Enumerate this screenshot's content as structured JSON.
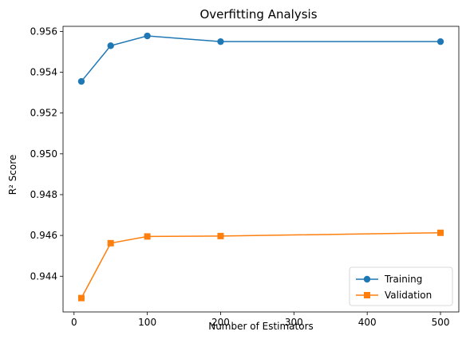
{
  "chart_data": {
    "type": "line",
    "title": "Overfitting Analysis",
    "xlabel": "Number of Estimators",
    "ylabel": "R² Score",
    "xlim": [
      -15,
      525
    ],
    "ylim": [
      0.94225,
      0.95625
    ],
    "xticks": [
      "0",
      "100",
      "200",
      "300",
      "400",
      "500"
    ],
    "yticks": [
      "0.944",
      "0.946",
      "0.948",
      "0.950",
      "0.952",
      "0.954",
      "0.956"
    ],
    "legend_position": "lower right",
    "grid": false,
    "series": [
      {
        "name": "Training",
        "color": "#1f77b4",
        "marker": "circle",
        "points": [
          [
            10,
            0.95355
          ],
          [
            50,
            0.9553
          ],
          [
            100,
            0.95578
          ],
          [
            200,
            0.9555
          ],
          [
            500,
            0.9555
          ]
        ]
      },
      {
        "name": "Validation",
        "color": "#ff7f0e",
        "marker": "square",
        "points": [
          [
            10,
            0.94293
          ],
          [
            50,
            0.94562
          ],
          [
            100,
            0.94595
          ],
          [
            200,
            0.94597
          ],
          [
            500,
            0.94613
          ]
        ]
      }
    ]
  }
}
